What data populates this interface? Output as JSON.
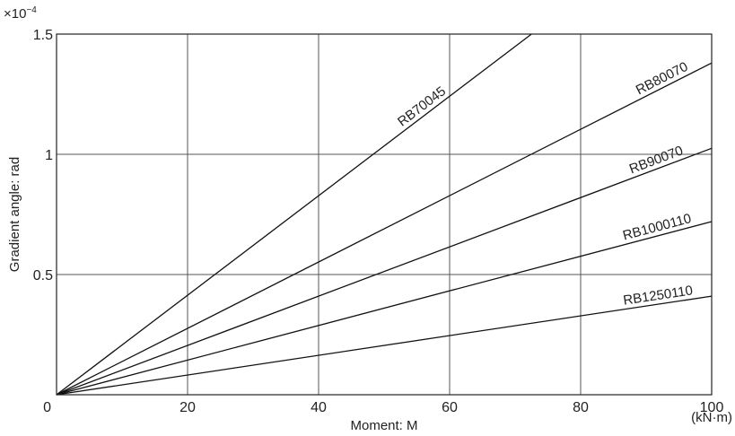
{
  "chart_data": {
    "type": "line",
    "xlabel": "Moment: M",
    "xunit": "(kN·m)",
    "ylabel": "Gradient angle: rad",
    "yscale_label": "×10",
    "yscale_exp": "−4",
    "xlim": [
      0,
      100
    ],
    "ylim": [
      0,
      1.5
    ],
    "x_ticks": [
      0,
      20,
      40,
      60,
      80,
      100
    ],
    "x_tick_labels": [
      "0",
      "20",
      "40",
      "60",
      "80",
      "100"
    ],
    "y_ticks": [
      0,
      0.5,
      1,
      1.5
    ],
    "y_tick_labels": [
      "0",
      "0.5",
      "1",
      "1.5"
    ],
    "grid": true,
    "series": [
      {
        "name": "RB70045",
        "x": [
          0,
          72.5
        ],
        "y": [
          0,
          1.5
        ]
      },
      {
        "name": "RB80070",
        "x": [
          0,
          100
        ],
        "y": [
          0,
          1.38
        ]
      },
      {
        "name": "RB90070",
        "x": [
          0,
          100
        ],
        "y": [
          0,
          1.025
        ]
      },
      {
        "name": "RB1000110",
        "x": [
          0,
          100
        ],
        "y": [
          0,
          0.72
        ]
      },
      {
        "name": "RB1250110",
        "x": [
          0,
          100
        ],
        "y": [
          0,
          0.41
        ]
      }
    ]
  }
}
